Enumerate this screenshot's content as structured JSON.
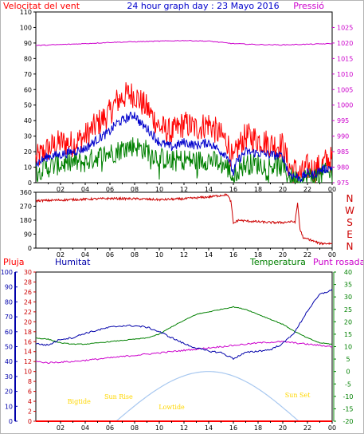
{
  "header": {
    "left": "Velocitat del vent",
    "center": "24 hour graph day : 23 Mayo 2016",
    "right": "Pressió"
  },
  "labels": {
    "pluja": "Pluja",
    "humitat": "Humitat",
    "temperatura": "Temperatura",
    "punt_rosada": "Punt rosada"
  },
  "colors": {
    "wind_avg": "#0000cc",
    "wind_gust": "#ff0000",
    "wind_low": "#008000",
    "pressure": "#cc00cc",
    "direction": "#cc0000",
    "humidity": "#0000aa",
    "temperature": "#008000",
    "dew_point": "#cc00cc",
    "rain": "#ff0000",
    "solar": "#a8c8f0",
    "annotation": "#ffd700"
  },
  "x_ticks": [
    "02",
    "04",
    "06",
    "08",
    "10",
    "12",
    "14",
    "16",
    "18",
    "20",
    "22",
    "00"
  ],
  "chart_data": [
    {
      "type": "line",
      "name": "wind-and-pressure",
      "x_hours": [
        0,
        1,
        2,
        3,
        4,
        5,
        6,
        6.5,
        7,
        7.5,
        8,
        8.5,
        9,
        10,
        11,
        12,
        13,
        14,
        15,
        15.5,
        16,
        16.3,
        17,
        18,
        19,
        20,
        20.5,
        21,
        21.5,
        22,
        22.5,
        23,
        23.5,
        24
      ],
      "series": [
        {
          "key": "gust",
          "values": [
            15,
            22,
            26,
            25,
            30,
            38,
            45,
            52,
            55,
            57,
            57,
            52,
            48,
            36,
            32,
            38,
            35,
            38,
            30,
            27,
            12,
            22,
            30,
            28,
            25,
            24,
            10,
            8,
            5,
            10,
            8,
            10,
            14,
            15
          ]
        },
        {
          "key": "avg",
          "values": [
            12,
            17,
            18,
            20,
            22,
            28,
            33,
            38,
            40,
            42,
            44,
            38,
            35,
            26,
            23,
            26,
            24,
            26,
            20,
            18,
            6,
            14,
            20,
            19,
            18,
            17,
            6,
            4,
            3,
            6,
            5,
            8,
            9,
            10
          ]
        },
        {
          "key": "low",
          "values": [
            8,
            10,
            12,
            13,
            13,
            17,
            19,
            20,
            22,
            23,
            24,
            22,
            21,
            16,
            14,
            15,
            14,
            15,
            12,
            10,
            3,
            8,
            12,
            12,
            11,
            10,
            4,
            2,
            1,
            4,
            3,
            5,
            6,
            6
          ]
        }
      ],
      "pressure": {
        "x_hours": [
          0,
          2,
          4,
          6,
          8,
          10,
          12,
          14,
          16,
          18,
          20,
          22,
          24
        ],
        "values": [
          1019.2,
          1019.5,
          1019.8,
          1020.2,
          1020.4,
          1020.6,
          1020.8,
          1020.6,
          1019.8,
          1019.5,
          1019.4,
          1019.6,
          1019.8
        ]
      },
      "y_left": {
        "min": 0,
        "max": 110,
        "ticks": [
          0,
          10,
          20,
          30,
          40,
          50,
          60,
          70,
          80,
          90,
          100,
          110
        ]
      },
      "y_right": {
        "min": 975,
        "max": 1030,
        "ticks": [
          975,
          980,
          985,
          990,
          995,
          1000,
          1005,
          1010,
          1015,
          1020,
          1025
        ]
      }
    },
    {
      "type": "line",
      "name": "wind-direction",
      "x_hours": [
        0,
        2,
        4,
        6,
        8,
        10,
        12,
        14,
        15.5,
        15.8,
        16,
        16.4,
        17,
        18,
        19,
        20,
        20.5,
        21,
        21.2,
        21.4,
        21.7,
        22,
        23,
        24
      ],
      "values": [
        305,
        310,
        315,
        320,
        318,
        312,
        318,
        330,
        345,
        300,
        160,
        180,
        175,
        170,
        165,
        165,
        170,
        170,
        290,
        120,
        60,
        60,
        30,
        30
      ],
      "y_ticks": [
        0,
        90,
        180,
        270,
        360
      ],
      "compass": [
        "N",
        "W",
        "S",
        "E",
        "N"
      ]
    },
    {
      "type": "line",
      "name": "climate",
      "x_hours": [
        0,
        1,
        2,
        3,
        4,
        5,
        6,
        7,
        8,
        9,
        10,
        11,
        12,
        13,
        14,
        15,
        16,
        17,
        18,
        19,
        20,
        21,
        22,
        23,
        24
      ],
      "humidity": [
        52,
        51,
        55,
        56,
        59,
        61,
        63,
        64,
        64,
        63,
        60,
        56,
        52,
        49,
        47,
        46,
        42,
        46,
        47,
        48,
        52,
        60,
        74,
        85,
        88
      ],
      "temperature": [
        13.5,
        13,
        11.5,
        11,
        11,
        11.5,
        12,
        12.5,
        13,
        13.5,
        15,
        18,
        20.5,
        23,
        24,
        25,
        26,
        25,
        23,
        21,
        19,
        16,
        13.5,
        11.5,
        11
      ],
      "dew_point": [
        4,
        3.5,
        3.8,
        4,
        4.5,
        5,
        5.5,
        6,
        6.5,
        7,
        7.5,
        8,
        8.5,
        9,
        9.5,
        10,
        10.5,
        11,
        11.5,
        11.8,
        12,
        11.5,
        11,
        10.5,
        10
      ],
      "solar": {
        "rise": 6.5,
        "set": 21.3,
        "peak": 14,
        "peak_value": 20
      },
      "rain_total": 0,
      "y_pluja": {
        "min": 0,
        "max": 30,
        "ticks": [
          0,
          2,
          4,
          6,
          8,
          10,
          12,
          14,
          16,
          18,
          20,
          22,
          24,
          26,
          28,
          30
        ]
      },
      "y_humitat": {
        "min": 0,
        "max": 100,
        "ticks": [
          0,
          10,
          20,
          30,
          40,
          50,
          60,
          70,
          80,
          90,
          100
        ]
      },
      "y_temp": {
        "min": -20,
        "max": 40,
        "ticks": [
          -20,
          -15,
          -10,
          -5,
          0,
          5,
          10,
          15,
          20,
          25,
          30,
          35,
          40
        ]
      },
      "annotations": [
        {
          "text": "Bigtide",
          "hour": 3.5
        },
        {
          "text": "Sun Rise",
          "hour": 6.7
        },
        {
          "text": "Lowtide",
          "hour": 11
        },
        {
          "text": "Sun Set",
          "hour": 21.2
        }
      ]
    }
  ]
}
